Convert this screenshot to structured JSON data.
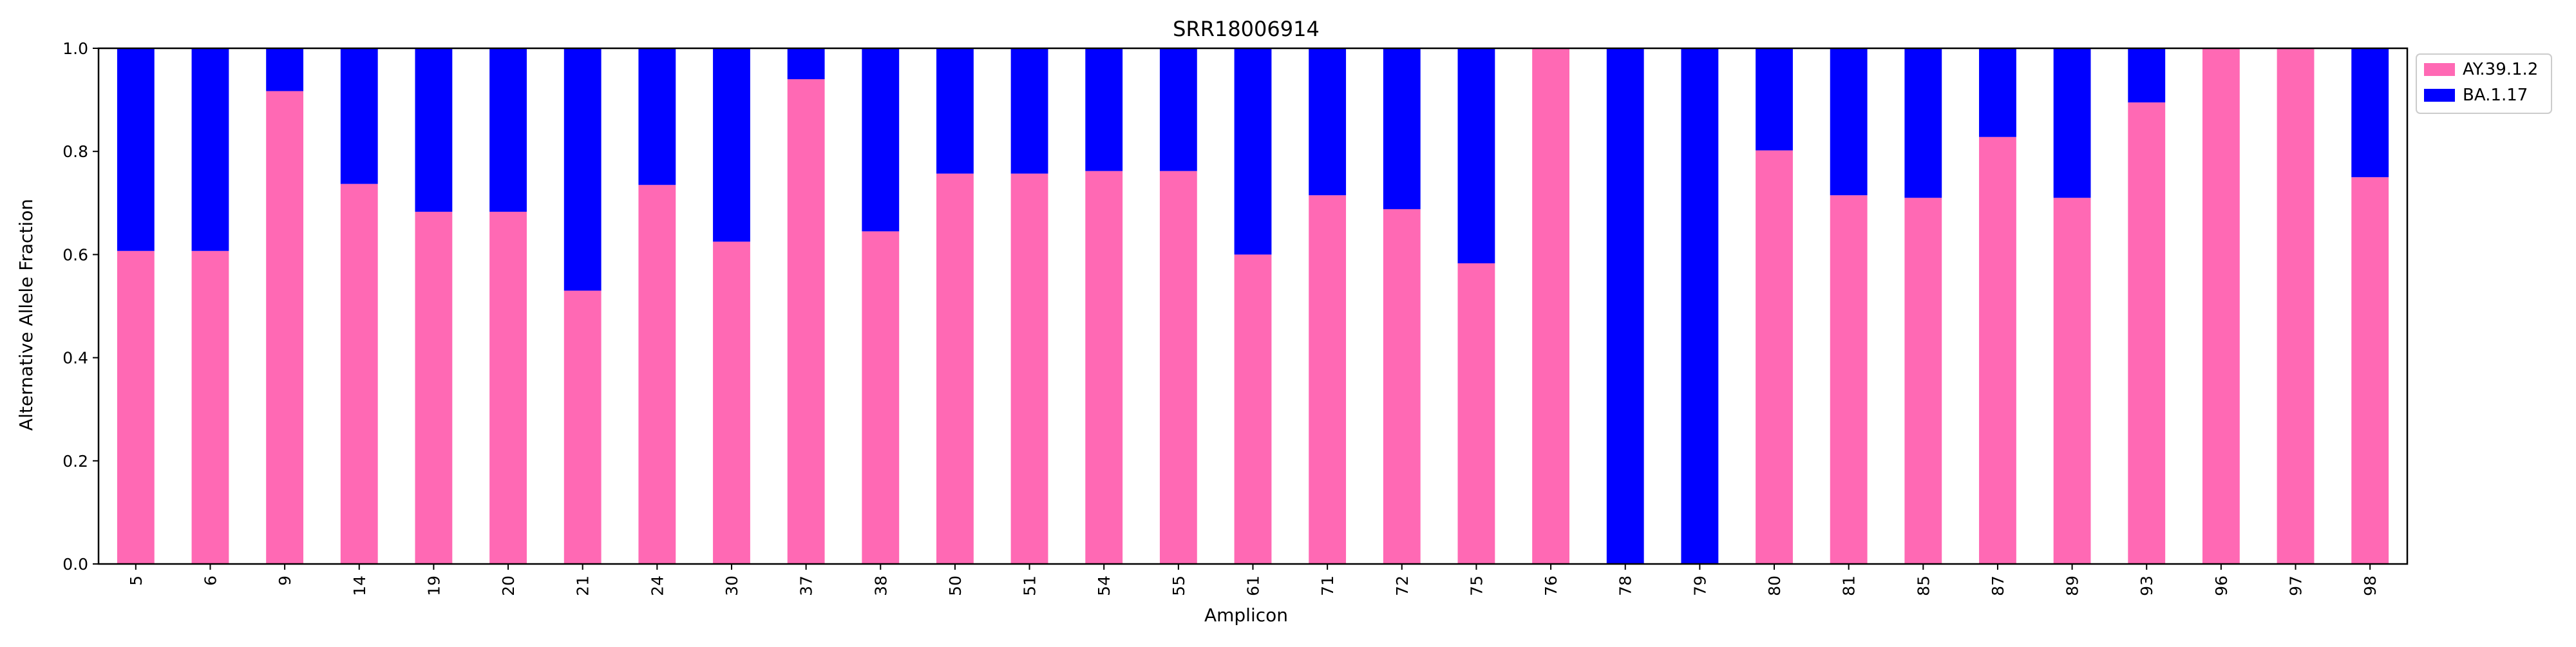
{
  "chart_data": {
    "type": "bar",
    "stacked": true,
    "title": "SRR18006914",
    "xlabel": "Amplicon",
    "ylabel": "Alternative Allele Fraction",
    "ylim": [
      0,
      1.0
    ],
    "yticks": [
      "0.0",
      "0.2",
      "0.4",
      "0.6",
      "0.8",
      "1.0"
    ],
    "grid": false,
    "legend_position": "outside-top-right",
    "categories": [
      "5",
      "6",
      "9",
      "14",
      "19",
      "20",
      "21",
      "24",
      "30",
      "37",
      "38",
      "50",
      "51",
      "54",
      "55",
      "61",
      "71",
      "72",
      "75",
      "76",
      "78",
      "79",
      "80",
      "81",
      "85",
      "87",
      "89",
      "93",
      "96",
      "97",
      "98"
    ],
    "series": [
      {
        "name": "AY.39.1.2",
        "color": "#ff69b4",
        "values": [
          0.607,
          0.607,
          0.917,
          0.737,
          0.683,
          0.683,
          0.53,
          0.735,
          0.625,
          0.94,
          0.645,
          0.757,
          0.757,
          0.762,
          0.762,
          0.6,
          0.715,
          0.688,
          0.583,
          1.0,
          0.0,
          0.0,
          0.802,
          0.715,
          0.71,
          0.828,
          0.71,
          0.895,
          1.0,
          1.0,
          0.75
        ]
      },
      {
        "name": "BA.1.17",
        "color": "#0000ff",
        "values": [
          0.393,
          0.393,
          0.083,
          0.263,
          0.317,
          0.317,
          0.47,
          0.265,
          0.375,
          0.06,
          0.355,
          0.243,
          0.243,
          0.238,
          0.238,
          0.4,
          0.285,
          0.312,
          0.417,
          0.0,
          1.0,
          1.0,
          0.198,
          0.285,
          0.29,
          0.172,
          0.29,
          0.105,
          0.0,
          0.0,
          0.25
        ]
      }
    ]
  }
}
